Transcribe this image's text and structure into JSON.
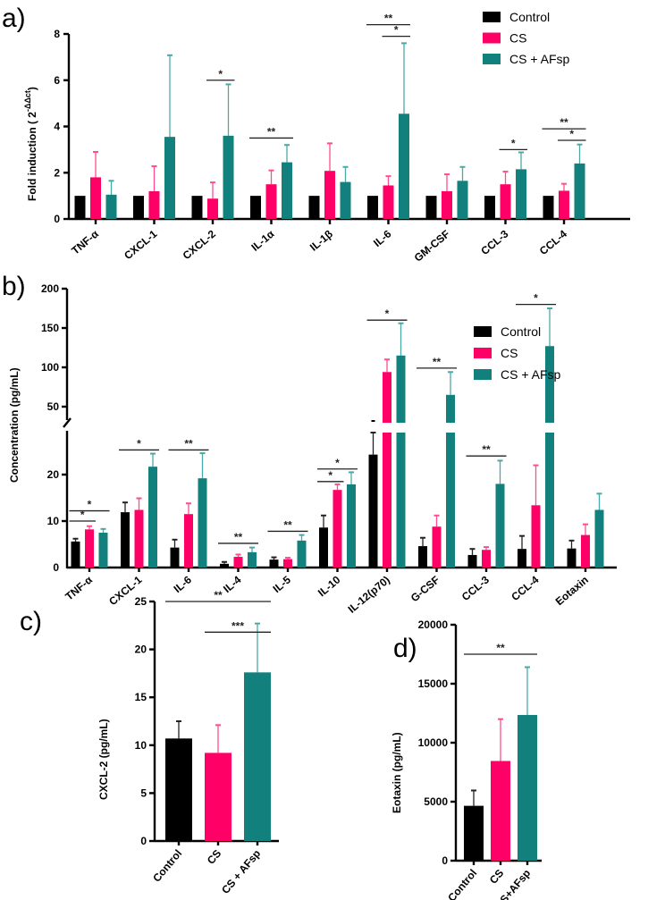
{
  "colors": {
    "Control": "#000000",
    "CS": "#ff0066",
    "CS + AFsp": "#12807c"
  },
  "chart_data": [
    {
      "panel": "a)",
      "type": "bar",
      "ylabel": "Fold induction ( 2",
      "ylabel_sup": "-ΔΔct",
      "ylabel_end": ")",
      "ylim": [
        0,
        8
      ],
      "yticks": [
        0,
        2,
        4,
        6,
        8
      ],
      "legend": [
        "Control",
        "CS",
        "CS + AFsp"
      ],
      "legend_position": "top-right",
      "categories": [
        "TNF-α",
        "CXCL-1",
        "CXCL-2",
        "IL-1α",
        "IL-1β",
        "IL-6",
        "GM-CSF",
        "CCL-3",
        "CCL-4"
      ],
      "series": [
        {
          "name": "Control",
          "values": [
            1,
            1,
            1,
            1,
            1,
            1,
            1,
            1,
            1
          ],
          "err": [
            1,
            1,
            1,
            1,
            1,
            1,
            1,
            1,
            1
          ]
        },
        {
          "name": "CS",
          "values": [
            1.8,
            1.2,
            0.88,
            1.5,
            2.08,
            1.45,
            1.2,
            1.5,
            1.22
          ],
          "err": [
            2.9,
            2.28,
            1.58,
            2.1,
            3.27,
            1.85,
            1.93,
            2.05,
            1.52
          ]
        },
        {
          "name": "CS + AFsp",
          "values": [
            1.05,
            3.55,
            3.6,
            2.45,
            1.6,
            4.55,
            1.65,
            2.15,
            2.4
          ],
          "err": [
            1.65,
            7.08,
            5.82,
            3.2,
            2.25,
            7.6,
            2.25,
            2.88,
            3.22
          ]
        }
      ],
      "significance": [
        {
          "cat": 2,
          "from": 1,
          "to": 2,
          "y": 6.0,
          "label": "*"
        },
        {
          "cat": 3,
          "from": 0,
          "to": 2,
          "y": 3.5,
          "label": "**"
        },
        {
          "cat": 5,
          "from": 0,
          "to": 2,
          "y": 8.4,
          "label": "**"
        },
        {
          "cat": 5,
          "from": 1,
          "to": 2,
          "y": 7.9,
          "label": "*"
        },
        {
          "cat": 7,
          "from": 1,
          "to": 2,
          "y": 3.0,
          "label": "*"
        },
        {
          "cat": 8,
          "from": 0,
          "to": 2,
          "y": 3.9,
          "label": "**"
        },
        {
          "cat": 8,
          "from": 1,
          "to": 2,
          "y": 3.4,
          "label": "*"
        }
      ]
    },
    {
      "panel": "b)",
      "type": "bar",
      "ylabel": "Concentration (pg/mL)",
      "ylim": [
        0,
        200
      ],
      "axis_break": [
        29,
        30
      ],
      "yticks": [
        10,
        20,
        50,
        100,
        150,
        200
      ],
      "yticks_zero": "0",
      "legend": [
        "Control",
        "CS",
        "CS + AFsp"
      ],
      "legend_position": "right",
      "categories": [
        "TNF-α",
        "CXCL-1",
        "IL-6",
        "IL-4",
        "IL-5",
        "IL-10",
        "IL-12(p70)",
        "G-CSF",
        "CCL-3",
        "CCL-4",
        "Eotaxin"
      ],
      "series": [
        {
          "name": "Control",
          "values": [
            5.6,
            11.9,
            4.3,
            0.8,
            1.7,
            8.6,
            24.3,
            4.6,
            2.7,
            4.0,
            4.1
          ],
          "err": [
            6.2,
            14,
            6,
            1.2,
            2.2,
            11.2,
            34,
            6.4,
            4,
            6.8,
            5.8
          ]
        },
        {
          "name": "CS",
          "values": [
            8.2,
            12.4,
            11.5,
            2.3,
            1.8,
            16.7,
            94,
            8.8,
            3.8,
            13.4,
            7.0
          ],
          "err": [
            8.9,
            14.9,
            13.8,
            2.8,
            2.1,
            17.9,
            110,
            11.2,
            4.4,
            22,
            9.3
          ]
        },
        {
          "name": "CS + AFsp",
          "values": [
            7.5,
            21.7,
            19.2,
            3.3,
            5.8,
            17.9,
            115,
            65,
            18,
            127,
            12.4
          ],
          "err": [
            8.3,
            24.5,
            24.6,
            4.3,
            7,
            20.5,
            156,
            94,
            23,
            175,
            15.9
          ]
        }
      ],
      "significance": [
        {
          "cat": 0,
          "from": 0,
          "to": 1,
          "y": 10.0,
          "label": "*"
        },
        {
          "cat": 0,
          "from": 0,
          "to": 2,
          "y": 12.2,
          "label": "*"
        },
        {
          "cat": 1,
          "from": 0,
          "to": 2,
          "y": 25.3,
          "label": "*"
        },
        {
          "cat": 2,
          "from": 0,
          "to": 2,
          "y": 25.3,
          "label": "**"
        },
        {
          "cat": 3,
          "from": 0,
          "to": 2,
          "y": 5.2,
          "label": "**"
        },
        {
          "cat": 4,
          "from": 0,
          "to": 2,
          "y": 7.8,
          "label": "**"
        },
        {
          "cat": 5,
          "from": 0,
          "to": 1,
          "y": 18.5,
          "label": "*"
        },
        {
          "cat": 5,
          "from": 0,
          "to": 2,
          "y": 21.2,
          "label": "*"
        },
        {
          "cat": 6,
          "from": 0,
          "to": 2,
          "y": 160,
          "label": "*"
        },
        {
          "cat": 7,
          "from": 0,
          "to": 2,
          "y": 99,
          "label": "**"
        },
        {
          "cat": 8,
          "from": 0,
          "to": 2,
          "y": 24,
          "label": "**"
        },
        {
          "cat": 9,
          "from": 0,
          "to": 2,
          "y": 180,
          "label": "*"
        }
      ]
    },
    {
      "panel": "c)",
      "type": "bar",
      "ylabel": "CXCL-2 (pg/mL)",
      "ylim": [
        0,
        25
      ],
      "yticks": [
        0,
        5,
        10,
        15,
        20,
        25
      ],
      "categories": [
        "Control",
        "CS",
        "CS + AFsp"
      ],
      "values": [
        10.7,
        9.2,
        17.6
      ],
      "err": [
        12.5,
        12.1,
        22.7
      ],
      "significance": [
        {
          "from": 0,
          "to": 2,
          "y": 25.0,
          "label": "**"
        },
        {
          "from": 1,
          "to": 2,
          "y": 21.8,
          "label": "***"
        }
      ]
    },
    {
      "panel": "d)",
      "type": "bar",
      "ylabel": "Eotaxin (pg/mL)",
      "ylim": [
        0,
        20000
      ],
      "yticks": [
        0,
        5000,
        10000,
        15000,
        20000
      ],
      "categories": [
        "Control",
        "CS",
        "CS+AFsp"
      ],
      "values": [
        4650,
        8450,
        12350
      ],
      "err": [
        5950,
        12000,
        16400
      ],
      "significance": [
        {
          "from": 0,
          "to": 2,
          "y": 17500,
          "label": "**"
        }
      ]
    }
  ]
}
